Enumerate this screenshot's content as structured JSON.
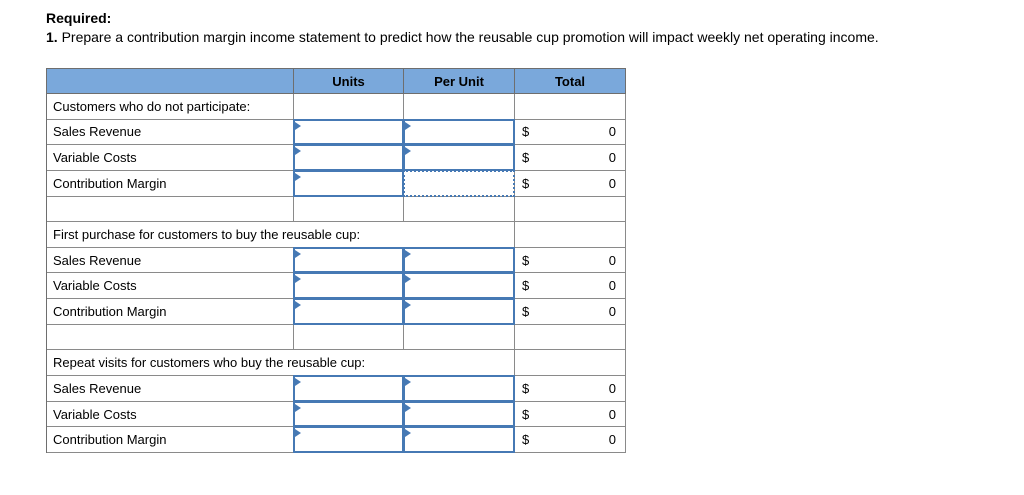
{
  "instructions": {
    "required_label": "Required:",
    "item_number": "1.",
    "item_text": " Prepare a contribution margin income statement to predict how the reusable cup promotion will impact weekly net operating income."
  },
  "colors": {
    "header_background": "#7aa8db",
    "input_cell_border": "#4679b4",
    "grid_line": "#8a8a8a"
  },
  "table": {
    "headers": {
      "col1": "",
      "units": "Units",
      "per_unit": "Per Unit",
      "total": "Total"
    },
    "currency": "$",
    "zero": "0",
    "sections": [
      {
        "title": "Customers who do not participate:",
        "rows": [
          {
            "label": "Sales Revenue",
            "units_input": "empty",
            "per_unit_input": "empty",
            "total": "0"
          },
          {
            "label": "Variable Costs",
            "units_input": "empty",
            "per_unit_input": "empty",
            "total": "0"
          },
          {
            "label": "Contribution Margin",
            "units_input": "empty",
            "per_unit_input": "empty-selected",
            "total": "0"
          }
        ]
      },
      {
        "title": "First purchase for customers to buy the reusable cup:",
        "rows": [
          {
            "label": "Sales Revenue",
            "units_input": "empty",
            "per_unit_input": "empty",
            "total": "0"
          },
          {
            "label": "Variable Costs",
            "units_input": "empty",
            "per_unit_input": "empty",
            "total": "0"
          },
          {
            "label": "Contribution Margin",
            "units_input": "empty",
            "per_unit_input": "empty",
            "total": "0"
          }
        ]
      },
      {
        "title": "Repeat visits for customers who buy the reusable cup:",
        "rows": [
          {
            "label": "Sales Revenue",
            "units_input": "empty",
            "per_unit_input": "empty",
            "total": "0"
          },
          {
            "label": "Variable Costs",
            "units_input": "empty",
            "per_unit_input": "empty",
            "total": "0"
          },
          {
            "label": "Contribution Margin",
            "units_input": "empty",
            "per_unit_input": "empty",
            "total": "0"
          }
        ]
      }
    ]
  }
}
